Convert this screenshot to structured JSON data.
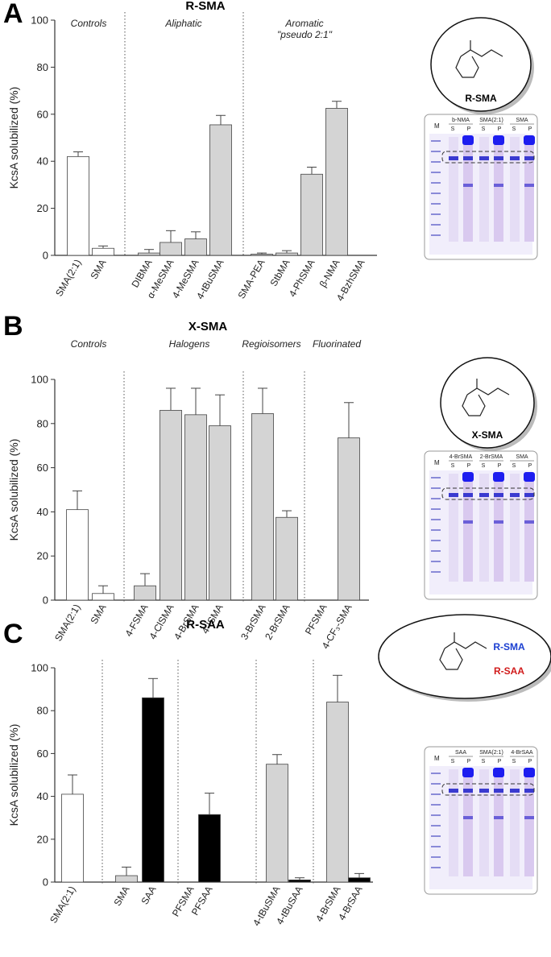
{
  "chart_data": [
    {
      "type": "bar",
      "panel": "A",
      "title": "R-SMA",
      "ylabel": "KcsA solubilized (%)",
      "categories": [
        "SMA(2:1)",
        "SMA",
        "DIBMA",
        "α-MeSMA",
        "4-MeSMA",
        "4-tBuSMA",
        "SMA-PEA",
        "StbMA",
        "4-PhSMA",
        "β-NMA",
        "4-BzhSMA"
      ],
      "values": [
        42,
        3,
        1,
        5.5,
        7,
        55.5,
        0.5,
        1,
        34.5,
        62.5,
        0
      ],
      "errors": [
        2,
        1,
        1.5,
        5,
        3,
        4,
        0.5,
        1,
        3,
        3,
        null
      ],
      "colors": [
        "#ffffff",
        "#ffffff",
        "#d4d4d4",
        "#d4d4d4",
        "#d4d4d4",
        "#d4d4d4",
        "#d4d4d4",
        "#d4d4d4",
        "#d4d4d4",
        "#d4d4d4",
        "#d4d4d4"
      ],
      "group_labels": [
        [
          "Controls"
        ],
        [
          "Aliphatic"
        ],
        [
          "Aromatic",
          "\"pseudo 2:1\""
        ]
      ],
      "ylim": [
        0,
        100
      ],
      "yticks": [
        0,
        20,
        40,
        60,
        80,
        100
      ],
      "structure_labels": [
        "R-SMA"
      ],
      "gel": {
        "marker": "M",
        "lanes": [
          "b-NMA",
          "SMA(2:1)",
          "SMA"
        ],
        "sub": [
          "S",
          "P"
        ]
      }
    },
    {
      "type": "bar",
      "panel": "B",
      "title": "X-SMA",
      "ylabel": "KcsA solubilized (%)",
      "categories": [
        "SMA(2:1)",
        "SMA",
        "4-FSMA",
        "4-ClSMA",
        "4-BrSMA",
        "4-ISMA",
        "3-BrSMA",
        "2-BrSMA",
        "PFSMA",
        "4-CF₃-SMA"
      ],
      "values": [
        41,
        3,
        6.5,
        86,
        84,
        79,
        84.5,
        37.5,
        0,
        73.5
      ],
      "errors": [
        8.5,
        3.5,
        5.5,
        10,
        12,
        14,
        11.5,
        3,
        null,
        16
      ],
      "colors": [
        "#ffffff",
        "#ffffff",
        "#d4d4d4",
        "#d4d4d4",
        "#d4d4d4",
        "#d4d4d4",
        "#d4d4d4",
        "#d4d4d4",
        "#d4d4d4",
        "#d4d4d4"
      ],
      "group_labels": [
        [
          "Controls"
        ],
        [
          "Halogens"
        ],
        [
          "Regioisomers"
        ],
        [
          "Fluorinated"
        ]
      ],
      "ylim": [
        0,
        100
      ],
      "yticks": [
        0,
        20,
        40,
        60,
        80,
        100
      ],
      "structure_labels": [
        "X-SMA"
      ],
      "gel": {
        "marker": "M",
        "lanes": [
          "4-BrSMA",
          "2-BrSMA",
          "SMA"
        ],
        "sub": [
          "S",
          "P"
        ]
      }
    },
    {
      "type": "bar",
      "panel": "C",
      "title": "R-SAA",
      "ylabel": "KcsA solubilized (%)",
      "categories": [
        "SMA(2:1)",
        "SMA",
        "SAA",
        "PFSMA",
        "PFSAA",
        "4-tBuSMA",
        "4-tBuSAA",
        "4-BrSMA",
        "4-BrSAA"
      ],
      "values": [
        41,
        3,
        86,
        0,
        31.5,
        55,
        1,
        84,
        2
      ],
      "errors": [
        9,
        4,
        9,
        null,
        10,
        4.5,
        1,
        12.5,
        2
      ],
      "colors": [
        "#ffffff",
        "#d4d4d4",
        "#000000",
        "#d4d4d4",
        "#000000",
        "#d4d4d4",
        "#000000",
        "#d4d4d4",
        "#000000"
      ],
      "ylim": [
        0,
        100
      ],
      "yticks": [
        0,
        20,
        40,
        60,
        80,
        100
      ],
      "structure_labels": [
        "R-SMA",
        "R-SAA"
      ],
      "gel": {
        "marker": "M",
        "lanes": [
          "SAA",
          "SMA(2:1)",
          "4-BrSAA"
        ],
        "sub": [
          "S",
          "P"
        ]
      }
    }
  ]
}
